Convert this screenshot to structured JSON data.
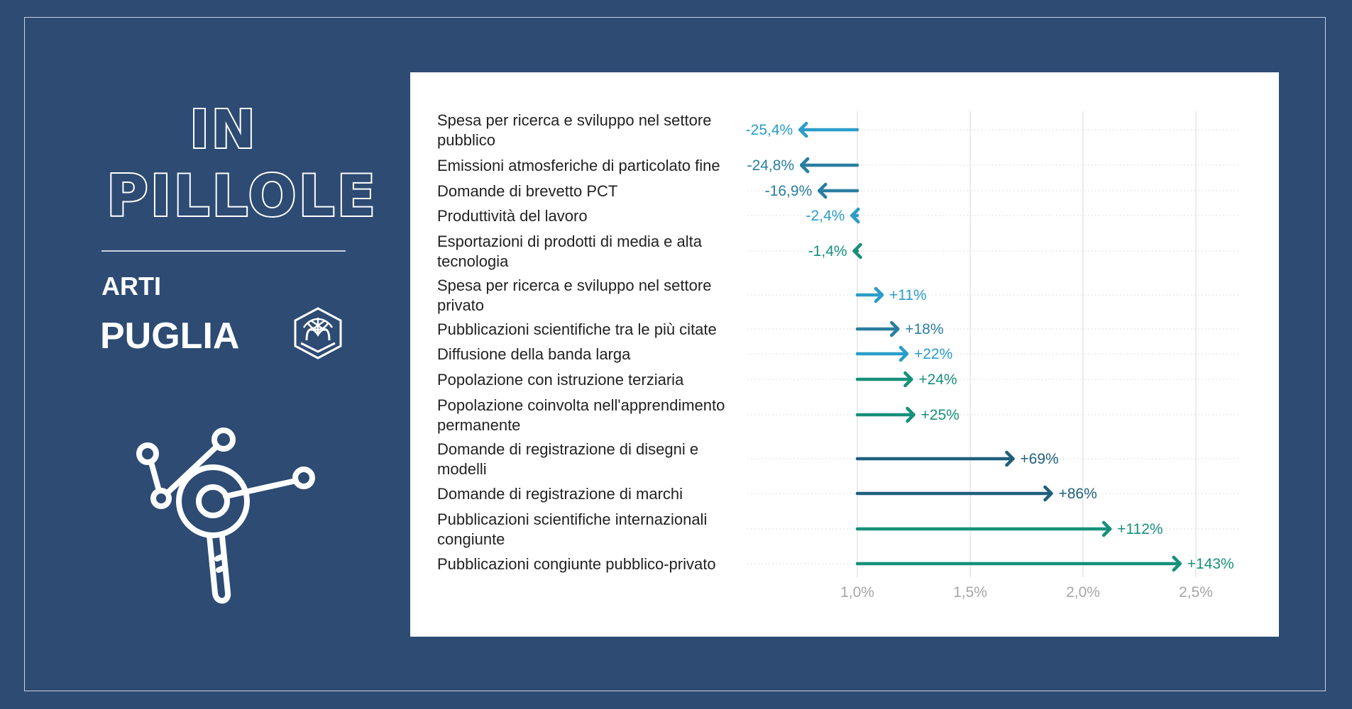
{
  "header": {
    "line1": "IN",
    "line2": "PILLOLE",
    "subtitle": "ARTI",
    "region": "PUGLIA"
  },
  "icons": [
    "arti-logo-icon",
    "magnifier-network-icon"
  ],
  "colors": {
    "background": "#2d4b73",
    "light_blue": "#2a9dc9",
    "mid_blue": "#2a7ea0",
    "dark_blue": "#1f5f7d",
    "green": "#16907a"
  },
  "chart_data": {
    "type": "bar",
    "categories": [
      "Spesa per ricerca e sviluppo nel settore pubblico",
      "Emissioni atmosferiche di particolato fine",
      "Domande di brevetto PCT",
      "Produttività del lavoro",
      "Esportazioni di prodotti di media e alta tecnologia",
      "Spesa per ricerca e sviluppo nel settore privato",
      "Pubblicazioni scientifiche tra le più citate",
      "Diffusione della banda larga",
      "Popolazione con istruzione terziaria",
      "Popolazione coinvolta nell'apprendimento permanente",
      "Domande di registrazione di disegni e modelli",
      "Domande di registrazione di marchi",
      "Pubblicazioni scientifiche internazionali congiunte",
      "Pubblicazioni congiunte pubblico-privato"
    ],
    "category_lines": [
      [
        "Spesa per ricerca e sviluppo nel settore",
        "pubblico"
      ],
      [
        "Emissioni atmosferiche di particolato fine"
      ],
      [
        "Domande di brevetto PCT"
      ],
      [
        "Produttività del lavoro"
      ],
      [
        "Esportazioni di prodotti di media e alta",
        "tecnologia"
      ],
      [
        "Spesa per ricerca e sviluppo nel settore",
        "privato"
      ],
      [
        "Pubblicazioni scientifiche tra le più citate"
      ],
      [
        "Diffusione della banda larga"
      ],
      [
        "Popolazione con istruzione terziaria"
      ],
      [
        "Popolazione coinvolta nell'apprendimento",
        "permanente"
      ],
      [
        "Domande di registrazione di disegni e",
        "modelli"
      ],
      [
        "Domande di registrazione di marchi"
      ],
      [
        "Pubblicazioni scientifiche internazionali",
        "congiunte"
      ],
      [
        "Pubblicazioni congiunte pubblico-privato"
      ]
    ],
    "base": 1.0,
    "values": [
      0.746,
      0.752,
      0.831,
      0.976,
      0.986,
      1.11,
      1.18,
      1.22,
      1.24,
      1.25,
      1.69,
      1.86,
      2.12,
      2.43
    ],
    "labels": [
      "-25,4%",
      "-24,8%",
      "-16,9%",
      "-2,4%",
      "-1,4%",
      "+11%",
      "+18%",
      "+22%",
      "+24%",
      "+25%",
      "+69%",
      "+86%",
      "+112%",
      "+143%"
    ],
    "colors": [
      "#2a9dc9",
      "#2a7ea0",
      "#2a7ea0",
      "#2a9dc9",
      "#16907a",
      "#2a9dc9",
      "#2a7ea0",
      "#2a9dc9",
      "#16907a",
      "#16907a",
      "#1f5f7d",
      "#1f5f7d",
      "#16907a",
      "#16907a"
    ],
    "x_ticks": [
      1.0,
      1.5,
      2.0,
      2.5
    ],
    "x_tick_labels": [
      "1,0%",
      "1,5%",
      "2,0%",
      "2,5%"
    ],
    "xlim": [
      0.5,
      2.65
    ],
    "grid": true
  }
}
